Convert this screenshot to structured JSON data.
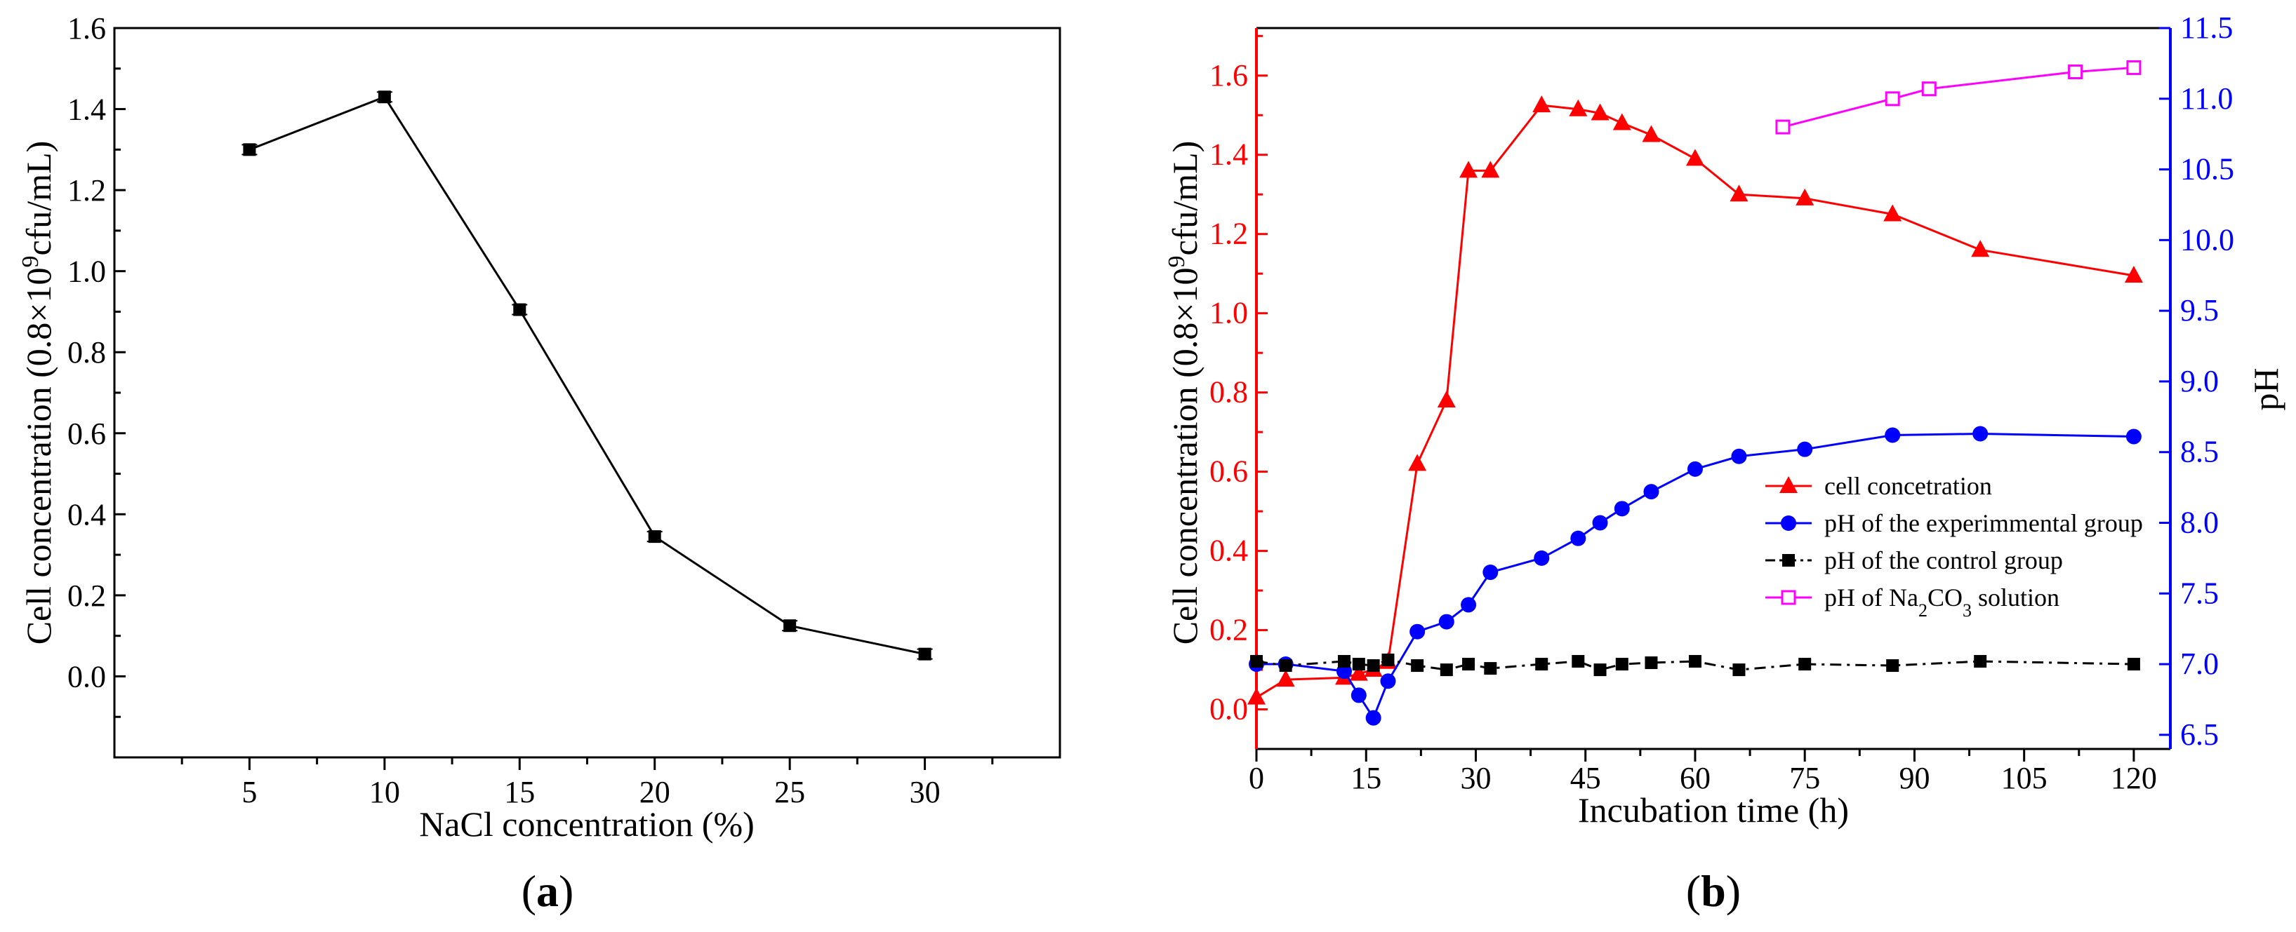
{
  "chart_data": [
    {
      "panel": "a",
      "panel_label": "a",
      "type": "line",
      "xlabel": "NaCl concentration (%)",
      "ylabel": "Cell concentration (0.8×10⁹cfu/mL)",
      "ylabel_parts": {
        "pre": "Cell concentration (0.8×10",
        "sup": "9",
        "post": "cfu/mL)"
      },
      "xlim": [
        0,
        35
      ],
      "ylim": [
        -0.2,
        1.6
      ],
      "x_ticks": [
        5,
        10,
        15,
        20,
        25,
        30
      ],
      "y_ticks": [
        0.0,
        0.2,
        0.4,
        0.6,
        0.8,
        1.0,
        1.2,
        1.4,
        1.6
      ],
      "series": [
        {
          "name": "cell concentration",
          "color": "#000000",
          "marker": "square",
          "x": [
            5,
            10,
            15,
            20,
            25,
            30
          ],
          "values": [
            1.3,
            1.43,
            0.905,
            0.345,
            0.125,
            0.055
          ]
        }
      ]
    },
    {
      "panel": "b",
      "panel_label": "b",
      "type": "line",
      "xlabel": "Incubation time (h)",
      "ylabel": "Cell concentration (0.8×10⁹cfu/mL)",
      "ylabel_parts": {
        "pre": "Cell concentration (0.8×10",
        "sup": "9",
        "post": "cfu/mL)"
      },
      "ylabel_right": "pH",
      "xlim": [
        0,
        125
      ],
      "ylim": [
        -0.1,
        1.72
      ],
      "ylim_right": [
        6.4,
        11.5
      ],
      "x_ticks": [
        0,
        15,
        30,
        45,
        60,
        75,
        90,
        105,
        120
      ],
      "y_ticks": [
        0.0,
        0.2,
        0.4,
        0.6,
        0.8,
        1.0,
        1.2,
        1.4,
        1.6
      ],
      "y_ticks_right": [
        "6.5",
        "7.0",
        "7.5",
        "8.0",
        "8.5",
        "9.0",
        "9.5",
        "10.0",
        "10.5",
        "11.0",
        "11.5"
      ],
      "left_axis_color": "#ff0000",
      "right_axis_color": "#0000ff",
      "legend_position": "center-right",
      "series": [
        {
          "name": "cell concetration",
          "legend": {
            "pre": "cell concetration"
          },
          "axis": "left",
          "color": "#ff0000",
          "marker": "triangle",
          "x": [
            0,
            4,
            12,
            14,
            16,
            18,
            22,
            26,
            29,
            32,
            39,
            44,
            47,
            50,
            54,
            60,
            66,
            75,
            87,
            99,
            120
          ],
          "values": [
            0.03,
            0.075,
            0.08,
            0.09,
            0.1,
            0.12,
            0.62,
            0.78,
            1.36,
            1.36,
            1.525,
            1.515,
            1.505,
            1.48,
            1.45,
            1.39,
            1.3,
            1.29,
            1.25,
            1.16,
            1.095
          ]
        },
        {
          "name": "pH of the experimmental group",
          "legend": {
            "pre": "pH of the experimmental group"
          },
          "axis": "right",
          "color": "#0000ff",
          "marker": "circle",
          "x": [
            0,
            4,
            12,
            14,
            16,
            18,
            22,
            26,
            29,
            32,
            39,
            44,
            47,
            50,
            54,
            60,
            66,
            75,
            87,
            99,
            120
          ],
          "values": [
            7.0,
            7.0,
            6.95,
            6.78,
            6.62,
            6.88,
            7.23,
            7.3,
            7.42,
            7.65,
            7.75,
            7.89,
            8.0,
            8.1,
            8.22,
            8.38,
            8.47,
            8.52,
            8.62,
            8.63,
            8.61
          ]
        },
        {
          "name": "pH of the control group",
          "legend": {
            "pre": "pH of the control group"
          },
          "axis": "right",
          "color": "#000000",
          "marker": "square",
          "x": [
            0,
            4,
            12,
            14,
            16,
            18,
            22,
            26,
            29,
            32,
            39,
            44,
            47,
            50,
            54,
            60,
            66,
            75,
            87,
            99,
            120
          ],
          "values": [
            7.02,
            6.99,
            7.02,
            7.0,
            6.99,
            7.03,
            6.99,
            6.96,
            7.0,
            6.97,
            7.0,
            7.02,
            6.96,
            7.0,
            7.01,
            7.02,
            6.96,
            7.0,
            6.99,
            7.02,
            7.0
          ]
        },
        {
          "name": "pH of Na2CO3 solution",
          "legend": {
            "pre": "pH of Na",
            "sub1": "2",
            "mid": "CO",
            "sub2": "3",
            "post": " solution"
          },
          "axis": "right",
          "color": "#ff00ff",
          "marker": "open-square",
          "x": [
            72,
            87,
            92,
            112,
            120
          ],
          "values": [
            10.8,
            11.0,
            11.07,
            11.19,
            11.22
          ]
        }
      ]
    }
  ]
}
